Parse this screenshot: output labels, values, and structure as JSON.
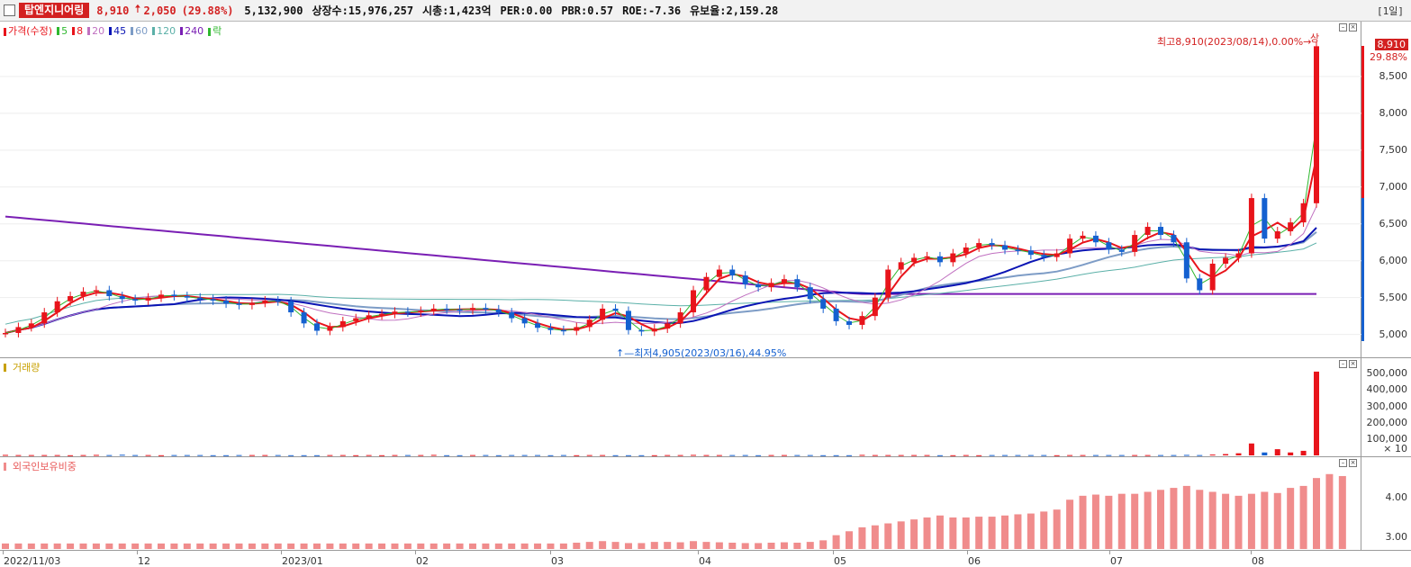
{
  "header": {
    "stock_name": "탑엔지니어링",
    "price": "8,910",
    "change": "2,050",
    "change_pct": "(29.88%)",
    "volume": "5,132,900",
    "listed_shares": "상장수:15,976,257",
    "market_cap": "시총:1,423억",
    "per": "PER:0.00",
    "pbr": "PBR:0.57",
    "roe": "ROE:-7.36",
    "retention": "유보율:2,159.28",
    "period": "[1일]"
  },
  "price_panel": {
    "legend": {
      "price": "가격(수정)",
      "ma5": "5",
      "ma8": "8",
      "ma20": "20",
      "ma45": "45",
      "ma60": "60",
      "ma120": "120",
      "ma240": "240",
      "lock": "락"
    },
    "high_annotation": "최고8,910(2023/08/14),0.00%→",
    "high_tag": "상",
    "low_annotation": "↑—최저4,905(2023/03/16),44.95%",
    "current_price_tag": "8,910",
    "current_pct_tag": "29.88%",
    "y_ticks": [
      "8,500",
      "8,000",
      "7,500",
      "7,000",
      "6,500",
      "6,000",
      "5,500",
      "5,000"
    ]
  },
  "volume_panel": {
    "legend": "거래량",
    "y_ticks": [
      "500,000",
      "400,000",
      "300,000",
      "200,000",
      "100,000"
    ],
    "unit": "× 10"
  },
  "foreign_panel": {
    "legend": "외국인보유비중",
    "y_ticks": [
      "4.00",
      "3.00"
    ]
  },
  "x_axis": {
    "labels": [
      "2022/11/03",
      "12",
      "2023/01",
      "02",
      "03",
      "04",
      "05",
      "06",
      "07",
      "08"
    ]
  },
  "colors": {
    "up": "#e8141b",
    "down": "#1460d0",
    "ma5": "#2fb82f",
    "ma8": "#e8141b",
    "ma20": "#c070c0",
    "ma45": "#0a14b4",
    "ma60": "#7d9cc6",
    "ma120": "#5bb0a8",
    "ma240": "#7a1fb4",
    "foreign_bar": "#f08c8c"
  },
  "chart_data": {
    "type": "candlestick",
    "ylim": [
      4800,
      9000
    ],
    "prices": [
      5020,
      5100,
      5150,
      5300,
      5450,
      5520,
      5580,
      5600,
      5520,
      5480,
      5460,
      5500,
      5540,
      5520,
      5500,
      5480,
      5460,
      5420,
      5400,
      5430,
      5460,
      5450,
      5300,
      5150,
      5050,
      5100,
      5180,
      5220,
      5260,
      5280,
      5310,
      5300,
      5320,
      5350,
      5340,
      5330,
      5360,
      5340,
      5300,
      5220,
      5150,
      5090,
      5060,
      5050,
      5100,
      5200,
      5350,
      5320,
      5060,
      5040,
      5080,
      5150,
      5300,
      5600,
      5780,
      5880,
      5800,
      5680,
      5640,
      5700,
      5750,
      5640,
      5480,
      5350,
      5180,
      5130,
      5250,
      5500,
      5880,
      5980,
      6040,
      6060,
      5980,
      6100,
      6180,
      6240,
      6210,
      6150,
      6140,
      6080,
      6050,
      6100,
      6300,
      6340,
      6250,
      6150,
      6120,
      6350,
      6460,
      6350,
      6250,
      5760,
      5600,
      5960,
      6040,
      6100,
      6850,
      6300,
      6400,
      6520,
      6780,
      8910
    ],
    "volume": [
      3,
      2,
      2,
      2,
      2,
      1,
      2,
      3,
      2,
      4,
      2,
      2,
      1,
      2,
      2,
      2,
      1,
      1,
      2,
      2,
      2,
      2,
      1,
      1,
      1,
      2,
      2,
      1,
      2,
      1,
      2,
      2,
      2,
      3,
      1,
      1,
      2,
      2,
      1,
      2,
      2,
      2,
      1,
      2,
      1,
      2,
      2,
      1,
      1,
      1,
      1,
      2,
      2,
      3,
      2,
      2,
      2,
      2,
      1,
      2,
      2,
      2,
      2,
      1,
      1,
      1,
      3,
      2,
      2,
      2,
      2,
      2,
      1,
      1,
      2,
      1,
      2,
      2,
      2,
      2,
      2,
      1,
      2,
      2,
      2,
      2,
      2,
      2,
      2,
      2,
      2,
      3,
      2,
      5,
      8,
      13,
      73,
      18,
      38,
      18,
      28,
      513
    ],
    "foreign": [
      2.84,
      2.84,
      2.84,
      2.84,
      2.84,
      2.84,
      2.84,
      2.84,
      2.84,
      2.84,
      2.84,
      2.84,
      2.84,
      2.84,
      2.84,
      2.84,
      2.84,
      2.84,
      2.84,
      2.84,
      2.84,
      2.84,
      2.84,
      2.84,
      2.84,
      2.84,
      2.84,
      2.84,
      2.84,
      2.84,
      2.84,
      2.84,
      2.84,
      2.84,
      2.84,
      2.84,
      2.84,
      2.84,
      2.84,
      2.84,
      2.84,
      2.84,
      2.84,
      2.84,
      2.86,
      2.88,
      2.9,
      2.88,
      2.85,
      2.85,
      2.88,
      2.88,
      2.87,
      2.9,
      2.88,
      2.87,
      2.86,
      2.85,
      2.85,
      2.86,
      2.87,
      2.86,
      2.88,
      2.92,
      3.05,
      3.15,
      3.25,
      3.3,
      3.35,
      3.4,
      3.45,
      3.5,
      3.55,
      3.5,
      3.5,
      3.52,
      3.52,
      3.55,
      3.58,
      3.6,
      3.65,
      3.7,
      3.95,
      4.05,
      4.08,
      4.05,
      4.1,
      4.1,
      4.15,
      4.2,
      4.25,
      4.3,
      4.2,
      4.15,
      4.1,
      4.05,
      4.1,
      4.15,
      4.12,
      4.25,
      4.3,
      4.5,
      4.6,
      4.55
    ],
    "y_ticks_price": [
      8500,
      8000,
      7500,
      7000,
      6500,
      6000,
      5500,
      5000
    ]
  }
}
